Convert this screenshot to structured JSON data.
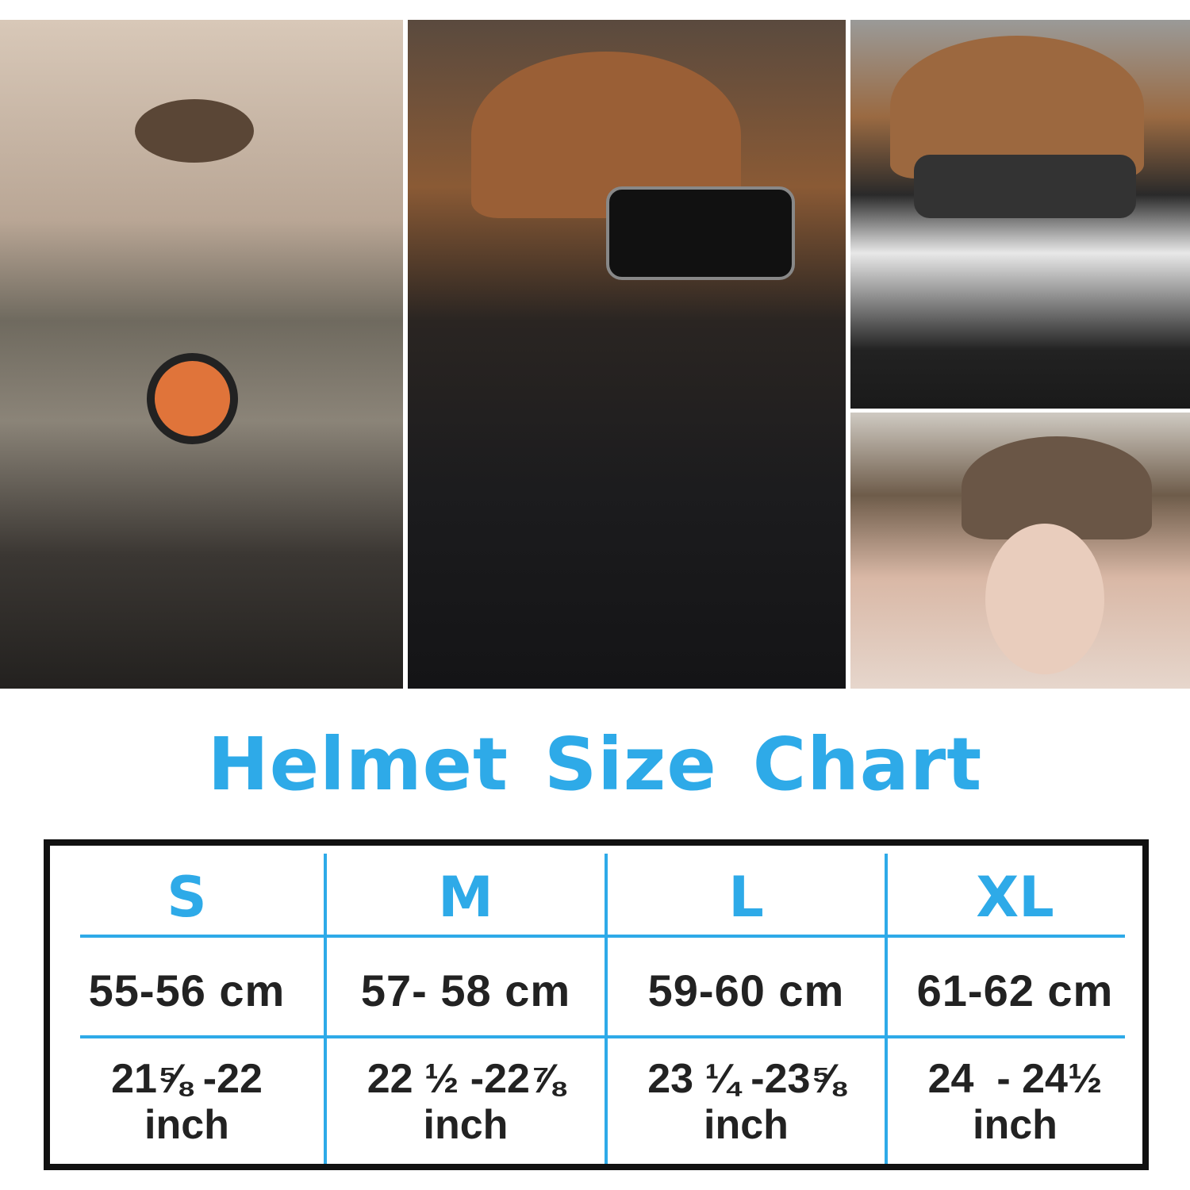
{
  "photos": [
    {
      "name": "woman-on-motorcycle-photo"
    },
    {
      "name": "rider-leather-helmet-goggles-photo"
    },
    {
      "name": "skull-mask-helmet-photo"
    },
    {
      "name": "woman-aviator-helmet-photo"
    }
  ],
  "title": "Helmet Size Chart",
  "colors": {
    "accent": "#2eaae8",
    "text": "#222222",
    "border": "#111111"
  },
  "size_chart": {
    "columns": [
      {
        "size": "S",
        "cm": "55-56 cm",
        "inch": "21⅝ -22",
        "unit": "inch"
      },
      {
        "size": "M",
        "cm": "57- 58 cm",
        "inch": "22 ½ -22⅞",
        "unit": "inch"
      },
      {
        "size": "L",
        "cm": "59-60 cm",
        "inch": "23 ¼ -23⅝",
        "unit": "inch"
      },
      {
        "size": "XL",
        "cm": "61-62 cm",
        "inch": "24  - 24½",
        "unit": "inch"
      }
    ]
  }
}
